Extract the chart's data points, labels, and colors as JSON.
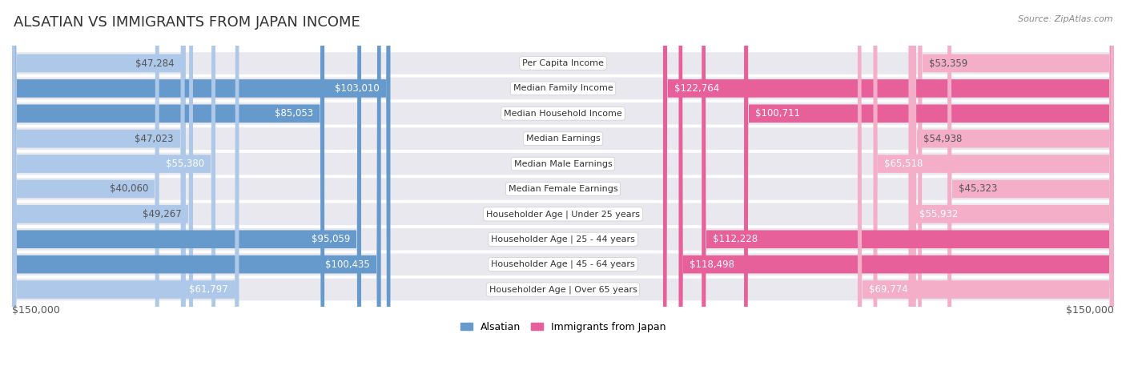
{
  "title": "ALSATIAN VS IMMIGRANTS FROM JAPAN INCOME",
  "source": "Source: ZipAtlas.com",
  "categories": [
    "Per Capita Income",
    "Median Family Income",
    "Median Household Income",
    "Median Earnings",
    "Median Male Earnings",
    "Median Female Earnings",
    "Householder Age | Under 25 years",
    "Householder Age | 25 - 44 years",
    "Householder Age | 45 - 64 years",
    "Householder Age | Over 65 years"
  ],
  "alsatian_values": [
    47284,
    103010,
    85053,
    47023,
    55380,
    40060,
    49267,
    95059,
    100435,
    61797
  ],
  "japan_values": [
    53359,
    122764,
    100711,
    54938,
    65518,
    45323,
    55932,
    112228,
    118498,
    69774
  ],
  "alsatian_labels": [
    "$47,284",
    "$103,010",
    "$85,053",
    "$47,023",
    "$55,380",
    "$40,060",
    "$49,267",
    "$95,059",
    "$100,435",
    "$61,797"
  ],
  "japan_labels": [
    "$53,359",
    "$122,764",
    "$100,711",
    "$54,938",
    "$65,518",
    "$45,323",
    "$55,932",
    "$112,228",
    "$118,498",
    "$69,774"
  ],
  "alsatian_color_light": "#adc8e8",
  "alsatian_color_dark": "#6699cc",
  "japan_color_light": "#f4aec8",
  "japan_color_dark": "#e8609a",
  "alsatian_dark_threshold": 80000,
  "japan_dark_threshold": 80000,
  "background_color": "#ffffff",
  "row_bg_color": "#e8e8ee",
  "max_value": 150000,
  "bar_height": 0.72,
  "legend_alsatian": "Alsatian",
  "legend_japan": "Immigrants from Japan",
  "x_axis_label_left": "$150,000",
  "x_axis_label_right": "$150,000",
  "inside_label_threshold": 55000,
  "label_fontsize": 8.5,
  "cat_fontsize": 8.0,
  "title_fontsize": 13
}
